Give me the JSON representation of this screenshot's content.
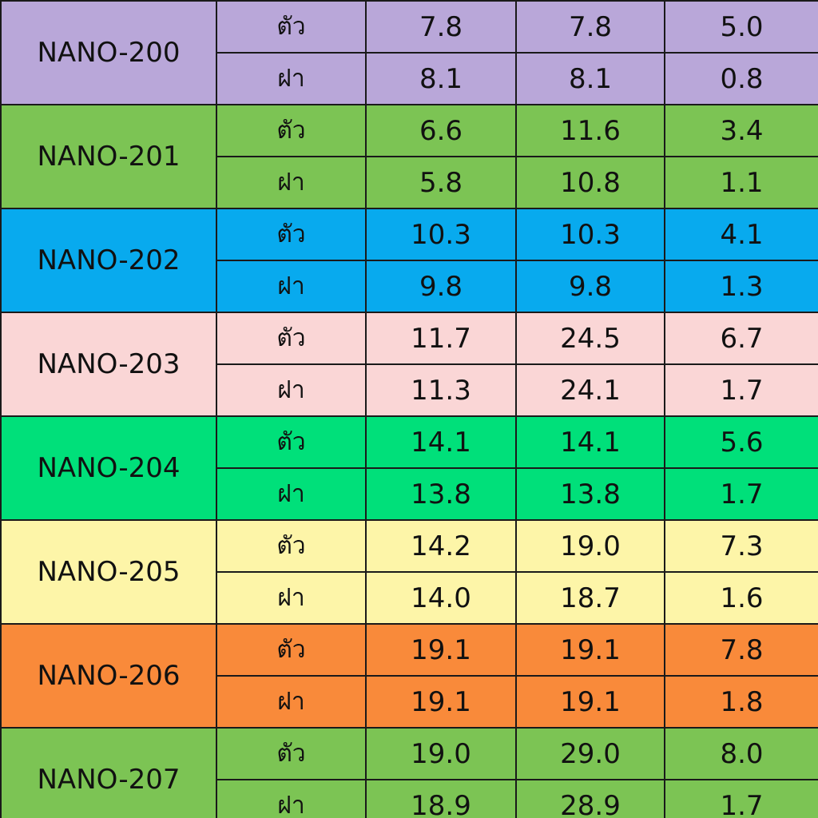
{
  "table": {
    "groups": [
      {
        "model": "NANO-200",
        "color": "#b9a7d9",
        "rows": [
          {
            "part": "ตัว",
            "values": [
              "7.8",
              "7.8",
              "5.0"
            ]
          },
          {
            "part": "ฝา",
            "values": [
              "8.1",
              "8.1",
              "0.8"
            ]
          }
        ]
      },
      {
        "model": "NANO-201",
        "color": "#7cc454",
        "rows": [
          {
            "part": "ตัว",
            "values": [
              "6.6",
              "11.6",
              "3.4"
            ]
          },
          {
            "part": "ฝา",
            "values": [
              "5.8",
              "10.8",
              "1.1"
            ]
          }
        ]
      },
      {
        "model": "NANO-202",
        "color": "#08aaee",
        "rows": [
          {
            "part": "ตัว",
            "values": [
              "10.3",
              "10.3",
              "4.1"
            ]
          },
          {
            "part": "ฝา",
            "values": [
              "9.8",
              "9.8",
              "1.3"
            ]
          }
        ]
      },
      {
        "model": "NANO-203",
        "color": "#fad6d6",
        "rows": [
          {
            "part": "ตัว",
            "values": [
              "11.7",
              "24.5",
              "6.7"
            ]
          },
          {
            "part": "ฝา",
            "values": [
              "11.3",
              "24.1",
              "1.7"
            ]
          }
        ]
      },
      {
        "model": "NANO-204",
        "color": "#00e07a",
        "rows": [
          {
            "part": "ตัว",
            "values": [
              "14.1",
              "14.1",
              "5.6"
            ]
          },
          {
            "part": "ฝา",
            "values": [
              "13.8",
              "13.8",
              "1.7"
            ]
          }
        ]
      },
      {
        "model": "NANO-205",
        "color": "#fdf5a8",
        "rows": [
          {
            "part": "ตัว",
            "values": [
              "14.2",
              "19.0",
              "7.3"
            ]
          },
          {
            "part": "ฝา",
            "values": [
              "14.0",
              "18.7",
              "1.6"
            ]
          }
        ]
      },
      {
        "model": "NANO-206",
        "color": "#f98a3a",
        "rows": [
          {
            "part": "ตัว",
            "values": [
              "19.1",
              "19.1",
              "7.8"
            ]
          },
          {
            "part": "ฝา",
            "values": [
              "19.1",
              "19.1",
              "1.8"
            ]
          }
        ]
      },
      {
        "model": "NANO-207",
        "color": "#7cc454",
        "rows": [
          {
            "part": "ตัว",
            "values": [
              "19.0",
              "29.0",
              "8.0"
            ]
          },
          {
            "part": "ฝา",
            "values": [
              "18.9",
              "28.9",
              "1.7"
            ]
          }
        ]
      }
    ]
  }
}
